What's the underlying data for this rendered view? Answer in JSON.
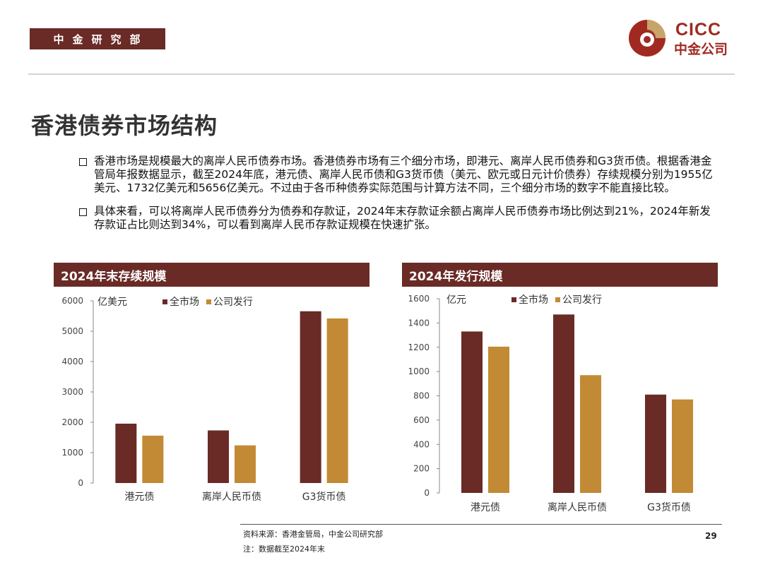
{
  "header": {
    "dept_tag": "中金研究部",
    "logo_en": "CICC",
    "logo_cn": "中金公司"
  },
  "page_title": "香港债券市场结构",
  "bullets": [
    "香港市场是规模最大的离岸人民币债券市场。香港债券市场有三个细分市场，即港元、离岸人民币债券和G3货币债。根据香港金管局年报数据显示，截至2024年底，港元债、离岸人民币债和G3货币债（美元、欧元或日元计价债券）存续规模分别为1955亿美元、1732亿美元和5656亿美元。不过由于各币种债券实际范围与计算方法不同，三个细分市场的数字不能直接比较。",
    "具体来看，可以将离岸人民币债券分为债券和存款证，2024年末存款证余额占离岸人民币债券市场比例达到21%，2024年新发存款证占比则达到34%，可以看到离岸人民币存款证规模在快速扩张。"
  ],
  "footer": {
    "source": "资料来源：香港金管局，中金公司研究部",
    "note": "注：数据截至2024年末",
    "page_number": "29"
  },
  "colors": {
    "brand": "#6a2a26",
    "series_total": "#6a2a26",
    "series_company": "#c28a34",
    "logo_red": "#a02a22"
  },
  "chart_data": [
    {
      "type": "bar",
      "title": "2024年末存续规模",
      "unit_label": "亿美元",
      "categories": [
        "港元债",
        "离岸人民币债",
        "G3货币债"
      ],
      "series": [
        {
          "name": "全市场",
          "values": [
            1955,
            1732,
            5656
          ]
        },
        {
          "name": "公司发行",
          "values": [
            1560,
            1240,
            5420
          ]
        }
      ],
      "ylim": [
        0,
        6000
      ],
      "yticks": [
        0,
        1000,
        2000,
        3000,
        4000,
        5000,
        6000
      ],
      "legend": "top-center",
      "grid": false
    },
    {
      "type": "bar",
      "title": "2024年发行规模",
      "unit_label": "亿元",
      "categories": [
        "港元债",
        "离岸人民币债",
        "G3货币债"
      ],
      "series": [
        {
          "name": "全市场",
          "values": [
            1330,
            1470,
            810
          ]
        },
        {
          "name": "公司发行",
          "values": [
            1205,
            970,
            770
          ]
        }
      ],
      "ylim": [
        0,
        1600
      ],
      "yticks": [
        0,
        200,
        400,
        600,
        800,
        1000,
        1200,
        1400,
        1600
      ],
      "legend": "top-center",
      "grid": false
    }
  ]
}
